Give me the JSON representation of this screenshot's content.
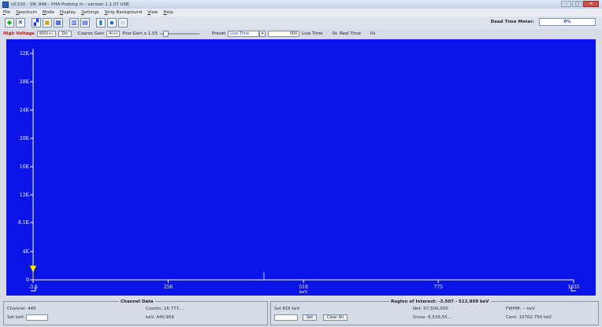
{
  "window": {
    "title": "UCS30 - SN: 846 - PHA Prebmp ln - version 1.1.07 USB",
    "controls": [
      "–",
      "□",
      "✕"
    ]
  },
  "menu": [
    "File",
    "Spectrum",
    "Mode",
    "Display",
    "Settings",
    "Strip Background",
    "View",
    "Help"
  ],
  "toolbar": {
    "buttons": [
      {
        "name": "go-icon",
        "glyph": "◆",
        "color": "#1aa51a"
      },
      {
        "name": "stop-icon",
        "glyph": "✕",
        "color": "#222222"
      },
      {
        "name": "tool-icon",
        "glyph": "▞",
        "color": "#1a3fd0"
      },
      {
        "name": "roi-icon",
        "glyph": "▣",
        "color": "#c8a000"
      },
      {
        "name": "zoom-icon",
        "glyph": "▦",
        "color": "#1a3fd0"
      },
      {
        "name": "view-a-icon",
        "glyph": "▥",
        "color": "#1a3fd0"
      },
      {
        "name": "view-b-icon",
        "glyph": "▤",
        "color": "#1a3fd0"
      },
      {
        "name": "save-icon",
        "glyph": "▮",
        "color": "#1a70d0"
      },
      {
        "name": "print-icon",
        "glyph": "▪",
        "color": "#1a70d0"
      },
      {
        "name": "misc-icon",
        "glyph": "▫",
        "color": "#8090a8"
      }
    ],
    "dead_time_label": "Dead Time Meter:",
    "dead_time_value": "0%"
  },
  "controls": {
    "high_voltage_label": "High Voltage",
    "high_voltage_value": "800(+)",
    "on_button": "On",
    "coarse_gain_label": "Coarse Gain",
    "coarse_gain_value": "4(+)",
    "fine_gain_label": "Fine Gain x 1.55",
    "fine_gain_fraction": 0.1,
    "preset_label": "Preset",
    "preset_value": "Live Time",
    "preset_time_value": "000",
    "live_time_label": "Live Time",
    "live_time_value": "0s",
    "real_time_label": "Real Time",
    "real_time_value": "0s"
  },
  "chart_data": {
    "type": "line",
    "y_ticks": [
      "32K",
      "28K",
      "24K",
      "20K",
      "16K",
      "12K",
      "8.1K",
      "4K",
      "0"
    ],
    "y_tick_values": [
      32000,
      28000,
      24000,
      20000,
      16000,
      12000,
      8100,
      4000,
      0
    ],
    "x_ticks": [
      "-3.5",
      "256",
      "516",
      "775",
      "1035"
    ],
    "x_tick_values": [
      -3.5,
      256,
      516,
      775,
      1035
    ],
    "x_unit": "keV",
    "xlim": [
      -3.5,
      1035
    ],
    "ylim": [
      0,
      32000
    ],
    "series": [
      {
        "values": []
      }
    ],
    "cursor_marker_x": -3.5,
    "roi_line_x": 440,
    "background_color": "#0a14e6",
    "axis_color": "#ffffff",
    "marker_color": "#ffe400"
  },
  "channel_panel": {
    "title": "Channel Data",
    "channel_label": "Channel: 440",
    "counts_label": "Counts: 16,777,...",
    "set_kev_label": "Set keV:",
    "kev_label": "keV: 440.956"
  },
  "roi_panel": {
    "title": "Region of Interest: -3.507 - 512.869 keV",
    "set_roi_label": "Set ROI keV",
    "set_button": "Set",
    "clear_all_button": "Clear All",
    "net_label": "Net: 97,500,000",
    "gross_label": "Gross: 8,539,55...",
    "fwhm_label": "FWHM: -- keV",
    "cent_label": "Cent: 10762.750 keV"
  }
}
